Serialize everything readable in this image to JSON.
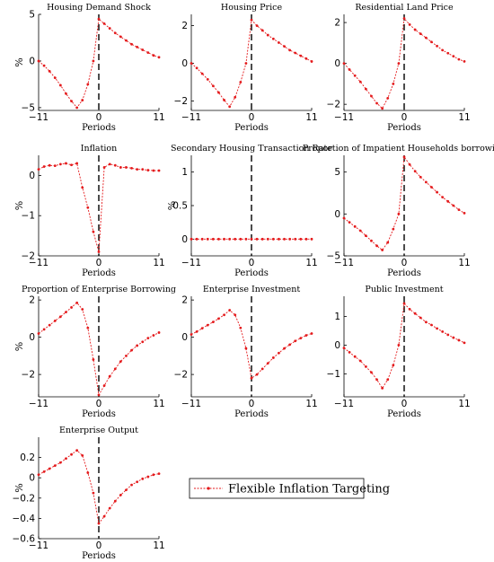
{
  "legend": {
    "label": "Flexible Inflation Targeting",
    "color": "#e41a1c"
  },
  "chart_data": [
    {
      "type": "line",
      "title": "Housing Demand Shock",
      "xlabel": "",
      "ylabel": "%",
      "xlim": [
        -11,
        11
      ],
      "ylim": [
        -5.3,
        5
      ],
      "xticks": [
        "-11",
        "0",
        "11"
      ],
      "yticks": [
        "-5",
        "0",
        "5"
      ],
      "ytick_values": [
        -5,
        0,
        5
      ],
      "x": [
        -11,
        -10,
        -9,
        -8,
        -7,
        -6,
        -5,
        -4,
        -3,
        -2,
        -1,
        0,
        1,
        2,
        3,
        4,
        5,
        6,
        7,
        8,
        9,
        10,
        11
      ],
      "series": [
        {
          "values": [
            0,
            -0.5,
            -1.1,
            -1.8,
            -2.6,
            -3.5,
            -4.3,
            -5.0,
            -4.2,
            -2.5,
            0,
            4.5,
            4.0,
            3.5,
            3.0,
            2.6,
            2.2,
            1.8,
            1.5,
            1.2,
            0.9,
            0.6,
            0.4
          ]
        }
      ]
    },
    {
      "type": "line",
      "title": "Housing Price",
      "xlabel": "",
      "ylabel": "",
      "xlim": [
        -11,
        11
      ],
      "ylim": [
        -2.5,
        2.6
      ],
      "xticks": [
        "-11",
        "0",
        "11"
      ],
      "yticks": [
        "-2",
        "0",
        "2"
      ],
      "ytick_values": [
        -2,
        0,
        2
      ],
      "x": [
        -11,
        -10,
        -9,
        -8,
        -7,
        -6,
        -5,
        -4,
        -3,
        -2,
        -1,
        0,
        1,
        2,
        3,
        4,
        5,
        6,
        7,
        8,
        9,
        10,
        11
      ],
      "series": [
        {
          "values": [
            0,
            -0.25,
            -0.55,
            -0.85,
            -1.2,
            -1.55,
            -1.95,
            -2.3,
            -1.8,
            -1.0,
            0,
            2.3,
            2.0,
            1.75,
            1.5,
            1.3,
            1.1,
            0.9,
            0.7,
            0.55,
            0.4,
            0.25,
            0.1
          ]
        }
      ]
    },
    {
      "type": "line",
      "title": "Residential Land Price",
      "xlabel": "",
      "ylabel": "",
      "xlim": [
        -11,
        11
      ],
      "ylim": [
        -2.3,
        2.4
      ],
      "xticks": [
        "-11",
        "0",
        "11"
      ],
      "yticks": [
        "-2",
        "0",
        "2"
      ],
      "ytick_values": [
        -2,
        0,
        2
      ],
      "x": [
        -11,
        -10,
        -9,
        -8,
        -7,
        -6,
        -5,
        -4,
        -3,
        -2,
        -1,
        0,
        1,
        2,
        3,
        4,
        5,
        6,
        7,
        8,
        9,
        10,
        11
      ],
      "series": [
        {
          "values": [
            0,
            -0.3,
            -0.6,
            -0.9,
            -1.25,
            -1.6,
            -1.95,
            -2.2,
            -1.7,
            -1.0,
            0,
            2.2,
            1.9,
            1.65,
            1.45,
            1.25,
            1.05,
            0.85,
            0.65,
            0.5,
            0.35,
            0.2,
            0.1
          ]
        }
      ]
    },
    {
      "type": "line",
      "title": "Inflation",
      "xlabel": "",
      "ylabel": "%",
      "xlim": [
        -11,
        11
      ],
      "ylim": [
        -2,
        0.5
      ],
      "xticks": [
        "-11",
        "0",
        "11"
      ],
      "yticks": [
        "-2",
        "-1",
        "0"
      ],
      "ytick_values": [
        -2,
        -1,
        0
      ],
      "x": [
        -11,
        -10,
        -9,
        -8,
        -7,
        -6,
        -5,
        -4,
        -3,
        -2,
        -1,
        0,
        1,
        2,
        3,
        4,
        5,
        6,
        7,
        8,
        9,
        10,
        11
      ],
      "series": [
        {
          "values": [
            0.15,
            0.22,
            0.25,
            0.24,
            0.28,
            0.3,
            0.26,
            0.3,
            -0.3,
            -0.8,
            -1.4,
            -1.9,
            0.2,
            0.28,
            0.25,
            0.2,
            0.2,
            0.18,
            0.15,
            0.15,
            0.13,
            0.12,
            0.12
          ]
        }
      ]
    },
    {
      "type": "line",
      "title": "Secondary Housing Transaction Rate",
      "xlabel": "",
      "ylabel": "%",
      "xlim": [
        -11,
        11
      ],
      "ylim": [
        -0.25,
        1.25
      ],
      "xticks": [
        "-11",
        "0",
        "11"
      ],
      "yticks": [
        "0",
        "0.5",
        "1"
      ],
      "ytick_values": [
        0,
        0.5,
        1
      ],
      "x": [
        -11,
        -10,
        -9,
        -8,
        -7,
        -6,
        -5,
        -4,
        -3,
        -2,
        -1,
        0,
        1,
        2,
        3,
        4,
        5,
        6,
        7,
        8,
        9,
        10,
        11
      ],
      "series": [
        {
          "values": [
            0,
            0,
            0,
            0,
            0,
            0,
            0,
            0,
            0,
            0,
            0,
            0,
            0,
            0,
            0,
            0,
            0,
            0,
            0,
            0,
            0,
            0,
            0
          ]
        }
      ]
    },
    {
      "type": "line",
      "title": "Proportion of Impatient Households borrowing",
      "xlabel": "",
      "ylabel": "",
      "xlim": [
        -11,
        11
      ],
      "ylim": [
        -5,
        7
      ],
      "xticks": [
        "-11",
        "0",
        "11"
      ],
      "yticks": [
        "-5",
        "0",
        "5"
      ],
      "ytick_values": [
        -5,
        0,
        5
      ],
      "x": [
        -11,
        -10,
        -9,
        -8,
        -7,
        -6,
        -5,
        -4,
        -3,
        -2,
        -1,
        0,
        1,
        2,
        3,
        4,
        5,
        6,
        7,
        8,
        9,
        10,
        11
      ],
      "series": [
        {
          "values": [
            -0.5,
            -1.0,
            -1.5,
            -2.0,
            -2.6,
            -3.2,
            -3.8,
            -4.3,
            -3.4,
            -1.8,
            0,
            6.8,
            5.9,
            5.1,
            4.4,
            3.8,
            3.2,
            2.6,
            2.0,
            1.5,
            1.0,
            0.5,
            0.1
          ]
        }
      ]
    },
    {
      "type": "line",
      "title": "Proportion of Enterprise Borrowing",
      "xlabel": "",
      "ylabel": "%",
      "xlim": [
        -11,
        11
      ],
      "ylim": [
        -3.2,
        2.2
      ],
      "xticks": [
        "-11",
        "0",
        "11"
      ],
      "yticks": [
        "-2",
        "0",
        "2"
      ],
      "ytick_values": [
        -2,
        0,
        2
      ],
      "x": [
        -11,
        -10,
        -9,
        -8,
        -7,
        -6,
        -5,
        -4,
        -3,
        -2,
        -1,
        0,
        1,
        2,
        3,
        4,
        5,
        6,
        7,
        8,
        9,
        10,
        11
      ],
      "series": [
        {
          "values": [
            0.2,
            0.42,
            0.65,
            0.88,
            1.1,
            1.35,
            1.6,
            1.85,
            1.5,
            0.5,
            -1.2,
            -3.1,
            -2.6,
            -2.1,
            -1.7,
            -1.3,
            -1.0,
            -0.7,
            -0.45,
            -0.25,
            -0.05,
            0.1,
            0.25
          ]
        }
      ]
    },
    {
      "type": "line",
      "title": "Enterprise Investment",
      "xlabel": "",
      "ylabel": "",
      "xlim": [
        -11,
        11
      ],
      "ylim": [
        -3.2,
        2.2
      ],
      "xticks": [
        "-11",
        "0",
        "11"
      ],
      "yticks": [
        "-2",
        "0",
        "2"
      ],
      "ytick_values": [
        -2,
        0,
        2
      ],
      "x": [
        -11,
        -10,
        -9,
        -8,
        -7,
        -6,
        -5,
        -4,
        -3,
        -2,
        -1,
        0,
        1,
        2,
        3,
        4,
        5,
        6,
        7,
        8,
        9,
        10,
        11
      ],
      "series": [
        {
          "values": [
            0.15,
            0.3,
            0.48,
            0.65,
            0.82,
            1.0,
            1.2,
            1.45,
            1.2,
            0.5,
            -0.6,
            -2.2,
            -2.0,
            -1.7,
            -1.4,
            -1.1,
            -0.85,
            -0.6,
            -0.4,
            -0.2,
            -0.05,
            0.1,
            0.2
          ]
        }
      ]
    },
    {
      "type": "line",
      "title": "Public Investment",
      "xlabel": "",
      "ylabel": "",
      "xlim": [
        -11,
        11
      ],
      "ylim": [
        -1.8,
        1.7
      ],
      "xticks": [
        "-11",
        "0",
        "11"
      ],
      "yticks": [
        "-1",
        "0",
        "1"
      ],
      "ytick_values": [
        -1,
        0,
        1
      ],
      "x": [
        -11,
        -10,
        -9,
        -8,
        -7,
        -6,
        -5,
        -4,
        -3,
        -2,
        -1,
        0,
        1,
        2,
        3,
        4,
        5,
        6,
        7,
        8,
        9,
        10,
        11
      ],
      "series": [
        {
          "values": [
            -0.1,
            -0.25,
            -0.4,
            -0.55,
            -0.75,
            -0.95,
            -1.2,
            -1.5,
            -1.2,
            -0.7,
            0,
            1.45,
            1.25,
            1.1,
            0.95,
            0.8,
            0.7,
            0.58,
            0.47,
            0.36,
            0.26,
            0.17,
            0.08
          ]
        }
      ]
    },
    {
      "type": "line",
      "title": "Enterprise Output",
      "xlabel": "Periods",
      "ylabel": "%",
      "xlim": [
        -11,
        11
      ],
      "ylim": [
        -0.6,
        0.4
      ],
      "xticks": [
        "-11",
        "0",
        "11"
      ],
      "yticks": [
        "-0.6",
        "-0.4",
        "-0.2",
        "0",
        "0.2"
      ],
      "ytick_values": [
        -0.6,
        -0.4,
        -0.2,
        0,
        0.2
      ],
      "x": [
        -11,
        -10,
        -9,
        -8,
        -7,
        -6,
        -5,
        -4,
        -3,
        -2,
        -1,
        0,
        1,
        2,
        3,
        4,
        5,
        6,
        7,
        8,
        9,
        10,
        11
      ],
      "series": [
        {
          "values": [
            0.03,
            0.06,
            0.09,
            0.12,
            0.15,
            0.19,
            0.23,
            0.27,
            0.22,
            0.05,
            -0.15,
            -0.45,
            -0.38,
            -0.3,
            -0.23,
            -0.17,
            -0.12,
            -0.07,
            -0.04,
            -0.01,
            0.01,
            0.03,
            0.04
          ]
        }
      ]
    }
  ],
  "xaxis_label": "Periods"
}
